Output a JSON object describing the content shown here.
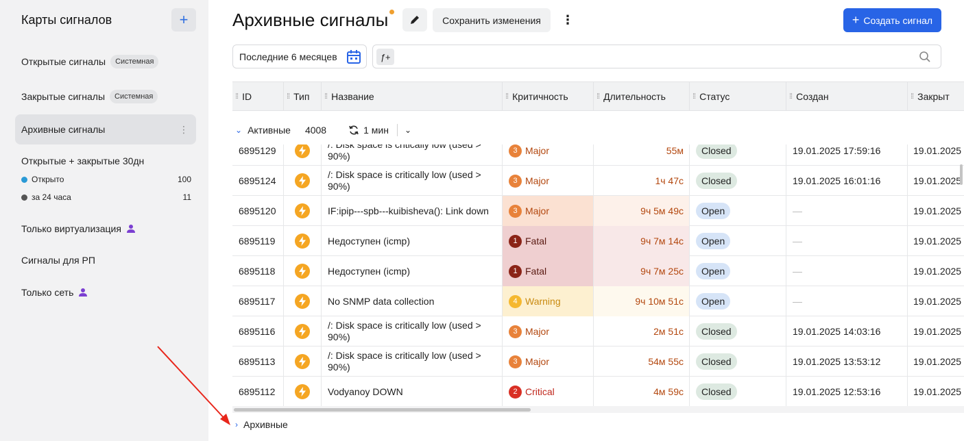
{
  "sidebar": {
    "title": "Карты сигналов",
    "add_label": "+",
    "items": [
      {
        "label": "Открытые сигналы",
        "badge": "Системная"
      },
      {
        "label": "Закрытые сигналы",
        "badge": "Системная"
      },
      {
        "label": "Архивные сигналы",
        "menu": "⋮"
      },
      {
        "label": "Открытые + закрытые 30дн"
      },
      {
        "label": "Только виртуализация"
      },
      {
        "label": "Сигналы для РП"
      },
      {
        "label": "Только сеть"
      }
    ],
    "sub": [
      {
        "label": "Открыто",
        "count": "100",
        "color": "#2b9ad6"
      },
      {
        "label": "за 24 часа",
        "count": "11",
        "color": "#555555"
      }
    ]
  },
  "header": {
    "title": "Архивные сигналы",
    "save_label": "Сохранить изменения",
    "kebab": "⋮",
    "create_label": "Создать сигнал",
    "create_plus": "+"
  },
  "filters": {
    "date_range": "Последние 6 месяцев",
    "fx_label": "ƒ+",
    "search_placeholder": ""
  },
  "table": {
    "columns": [
      "ID",
      "Тип",
      "Название",
      "Критичность",
      "Длительность",
      "Статус",
      "Создан",
      "Закрыт"
    ],
    "group": {
      "label": "Активные",
      "count": "4008",
      "refresh": "1 мин"
    },
    "rows": [
      {
        "id": "6895129",
        "name": "/: Disk space is critically low (used > 90%)",
        "sev_num": "3",
        "sev": "Major",
        "dur": "55м",
        "status": "Closed",
        "created": "19.01.2025 17:59:16",
        "closed": "19.01.2025"
      },
      {
        "id": "6895124",
        "name": "/: Disk space is critically low (used > 90%)",
        "sev_num": "3",
        "sev": "Major",
        "dur": "1ч 47с",
        "status": "Closed",
        "created": "19.01.2025 16:01:16",
        "closed": "19.01.2025"
      },
      {
        "id": "6895120",
        "name": "IF:ipip---spb---kuibisheva(): Link down",
        "sev_num": "3",
        "sev": "Major",
        "dur": "9ч 5м 49с",
        "status": "Open",
        "created": "—",
        "closed": "19.01.2025"
      },
      {
        "id": "6895119",
        "name": "Недоступен (icmp)",
        "sev_num": "1",
        "sev": "Fatal",
        "dur": "9ч 7м 14с",
        "status": "Open",
        "created": "—",
        "closed": "19.01.2025"
      },
      {
        "id": "6895118",
        "name": "Недоступен (icmp)",
        "sev_num": "1",
        "sev": "Fatal",
        "dur": "9ч 7м 25с",
        "status": "Open",
        "created": "—",
        "closed": "19.01.2025"
      },
      {
        "id": "6895117",
        "name": "No SNMP data collection",
        "sev_num": "4",
        "sev": "Warning",
        "dur": "9ч 10м 51с",
        "status": "Open",
        "created": "—",
        "closed": "19.01.2025"
      },
      {
        "id": "6895116",
        "name": "/: Disk space is critically low (used > 90%)",
        "sev_num": "3",
        "sev": "Major",
        "dur": "2м 51с",
        "status": "Closed",
        "created": "19.01.2025 14:03:16",
        "closed": "19.01.2025"
      },
      {
        "id": "6895113",
        "name": "/: Disk space is critically low (used > 90%)",
        "sev_num": "3",
        "sev": "Major",
        "dur": "54м 55с",
        "status": "Closed",
        "created": "19.01.2025 13:53:12",
        "closed": "19.01.2025"
      },
      {
        "id": "6895112",
        "name": "Vodyanoy DOWN",
        "sev_num": "2",
        "sev": "Critical",
        "dur": "4м 59с",
        "status": "Closed",
        "created": "19.01.2025 12:53:16",
        "closed": "19.01.2025"
      }
    ],
    "archive_group": "Архивные"
  },
  "colors": {
    "accent": "#2864e6",
    "major": "#e8823a",
    "fatal": "#8b2417",
    "critical": "#d93025",
    "warning": "#f5b830",
    "annotation_arrow": "#e8261b"
  }
}
